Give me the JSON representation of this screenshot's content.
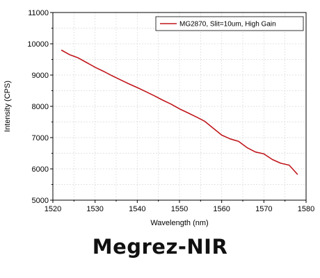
{
  "caption": "Megrez-NIR",
  "colors": {
    "series": "#c0161b",
    "axis": "#000000",
    "grid": "#d9d9d9"
  },
  "chart_data": {
    "type": "line",
    "title": "",
    "xlabel": "Wavelength (nm)",
    "ylabel": "Intensity (CPS)",
    "xlim": [
      1520,
      1580
    ],
    "ylim": [
      5000,
      11000
    ],
    "xticks": [
      1520,
      1530,
      1540,
      1550,
      1560,
      1570,
      1580
    ],
    "yticks": [
      5000,
      6000,
      7000,
      8000,
      9000,
      10000,
      11000
    ],
    "grid": true,
    "legend_position": "top-right",
    "series": [
      {
        "name": "MG2870, Slit=10um, High Gain",
        "x": [
          1522,
          1524,
          1526,
          1528,
          1530,
          1532,
          1534,
          1536,
          1538,
          1540,
          1542,
          1544,
          1546,
          1548,
          1550,
          1552,
          1554,
          1556,
          1558,
          1560,
          1562,
          1564,
          1566,
          1568,
          1570,
          1572,
          1574,
          1576,
          1578
        ],
        "y": [
          9800,
          9650,
          9550,
          9400,
          9250,
          9120,
          8980,
          8850,
          8720,
          8600,
          8470,
          8340,
          8200,
          8070,
          7920,
          7790,
          7660,
          7520,
          7300,
          7080,
          6960,
          6880,
          6680,
          6540,
          6480,
          6300,
          6180,
          6120,
          5820
        ]
      }
    ]
  }
}
